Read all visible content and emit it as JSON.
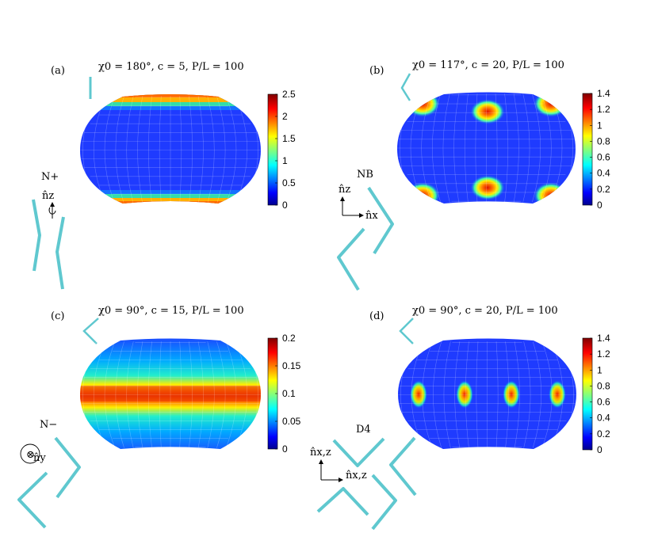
{
  "chart_data": [
    {
      "type": "heatmap",
      "panel_label": "(a)",
      "title": "χ0 = 180°, c = 5, P/L = 100",
      "phase_label": "N+",
      "axis_labels": [
        "n̂z"
      ],
      "colorbar": {
        "min": 0,
        "max": 2.5,
        "ticks": [
          "0",
          "0.5",
          "1",
          "1.5",
          "2",
          "2.5"
        ]
      },
      "pattern": "polar-bands",
      "peak_value": 2.4
    },
    {
      "type": "heatmap",
      "panel_label": "(b)",
      "title": "χ0 = 117°, c = 20, P/L = 100",
      "phase_label": "NB",
      "axis_labels": [
        "n̂z",
        "n̂x"
      ],
      "colorbar": {
        "min": 0,
        "max": 1.4,
        "ticks": [
          "0",
          "0.2",
          "0.4",
          "0.6",
          "0.8",
          "1",
          "1.2",
          "1.4"
        ]
      },
      "pattern": "six-spots",
      "peak_value": 1.4
    },
    {
      "type": "heatmap",
      "panel_label": "(c)",
      "title": "χ0 = 90°, c = 15, P/L = 100",
      "phase_label": "N−",
      "axis_labels": [
        "n̂y"
      ],
      "colorbar": {
        "min": 0,
        "max": 0.2,
        "ticks": [
          "0",
          "0.05",
          "0.1",
          "0.15",
          "0.2"
        ]
      },
      "pattern": "equatorial-band",
      "peak_value": 0.19
    },
    {
      "type": "heatmap",
      "panel_label": "(d)",
      "title": "χ0 = 90°, c = 20, P/L = 100",
      "phase_label": "D4",
      "axis_labels": [
        "n̂x,z",
        "n̂x,z"
      ],
      "colorbar": {
        "min": 0,
        "max": 1.4,
        "ticks": [
          "0",
          "0.2",
          "0.4",
          "0.6",
          "0.8",
          "1",
          "1.2",
          "1.4"
        ]
      },
      "pattern": "four-equatorial-spots",
      "peak_value": 1.2
    }
  ]
}
